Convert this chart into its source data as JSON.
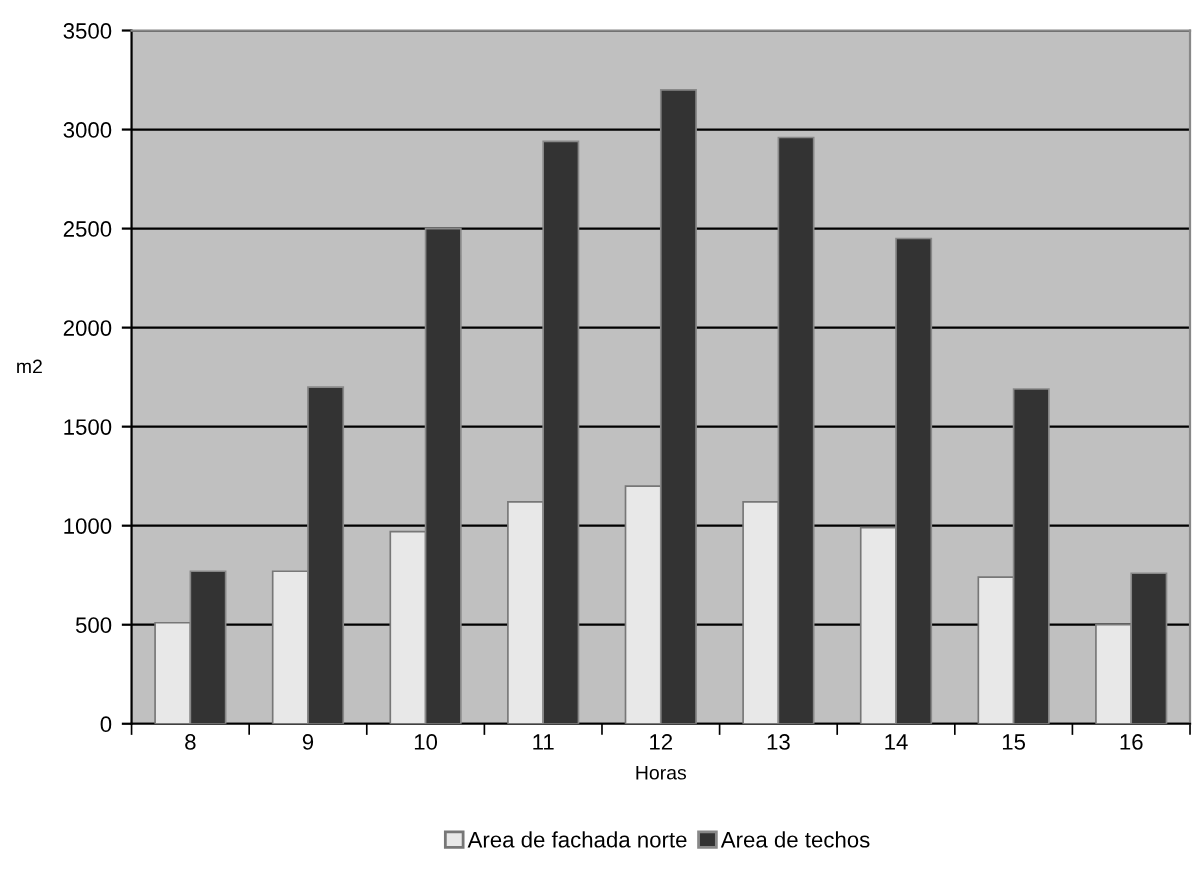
{
  "chart_data": {
    "type": "bar",
    "xlabel": "Horas",
    "ylabel": "m2",
    "categories": [
      "8",
      "9",
      "10",
      "11",
      "12",
      "13",
      "14",
      "15",
      "16"
    ],
    "series": [
      {
        "name": "Area de fachada norte",
        "color": "#e8e8e8",
        "values": [
          510,
          770,
          970,
          1120,
          1200,
          1120,
          990,
          740,
          500
        ]
      },
      {
        "name": "Area de techos",
        "color": "#333333",
        "values": [
          770,
          1700,
          2500,
          2940,
          3200,
          2960,
          2450,
          1690,
          760
        ]
      }
    ],
    "ylim": [
      0,
      3500
    ],
    "yticks": [
      0,
      500,
      1000,
      1500,
      2000,
      2500,
      3000,
      3500
    ],
    "grid": "y",
    "legend": "bottom"
  }
}
